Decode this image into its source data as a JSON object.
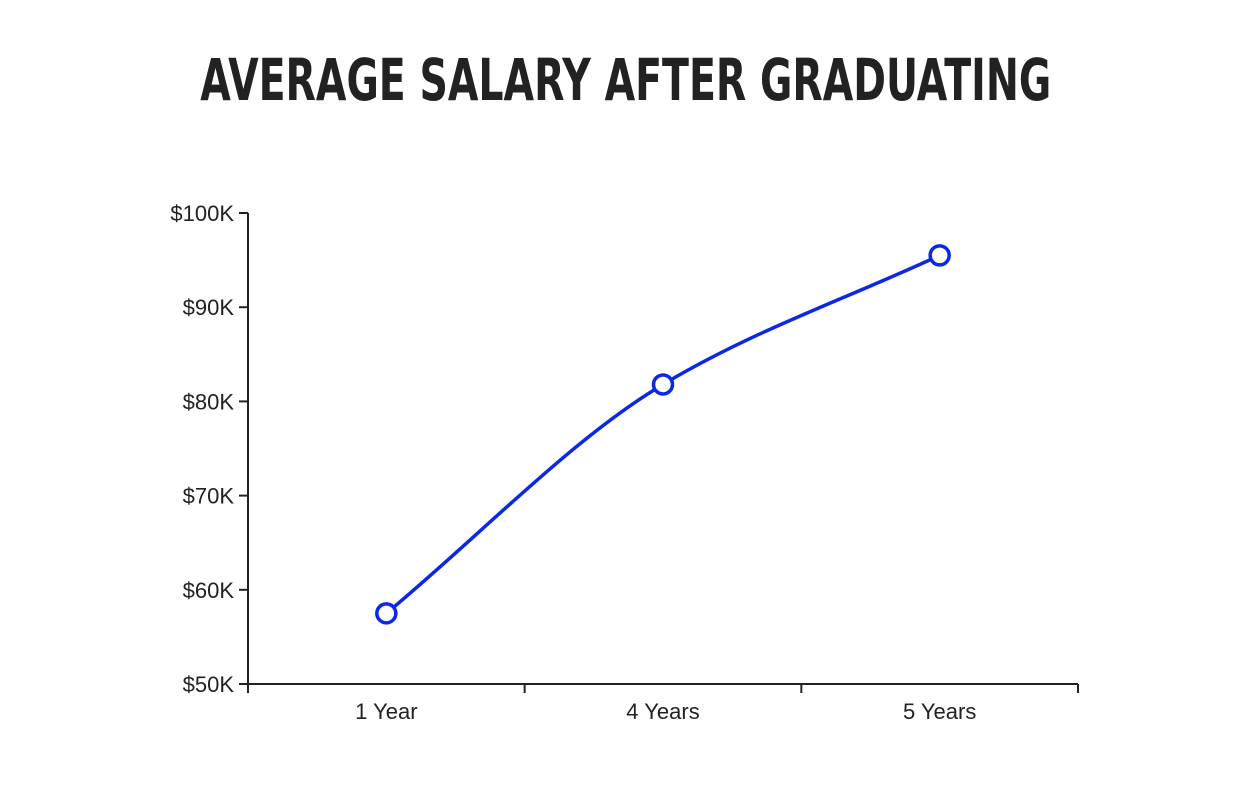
{
  "chart_data": {
    "type": "line",
    "title": "AVERAGE SALARY AFTER GRADUATING",
    "xlabel": "",
    "ylabel": "",
    "categories": [
      "1 Year",
      "4 Years",
      "5 Years"
    ],
    "series": [
      {
        "values": [
          57500,
          81800,
          95500
        ],
        "color": "#0a28e6"
      }
    ],
    "ylim": [
      50000,
      100000
    ],
    "yticks": [
      {
        "value": 50000,
        "label": "$50K"
      },
      {
        "value": 60000,
        "label": "$60K"
      },
      {
        "value": 70000,
        "label": "$70K"
      },
      {
        "value": 80000,
        "label": "$80K"
      },
      {
        "value": 90000,
        "label": "$90K"
      },
      {
        "value": 100000,
        "label": "$100K"
      }
    ],
    "grid": false,
    "legend": "none",
    "marker": "hollow-circle",
    "curve": "smooth"
  }
}
